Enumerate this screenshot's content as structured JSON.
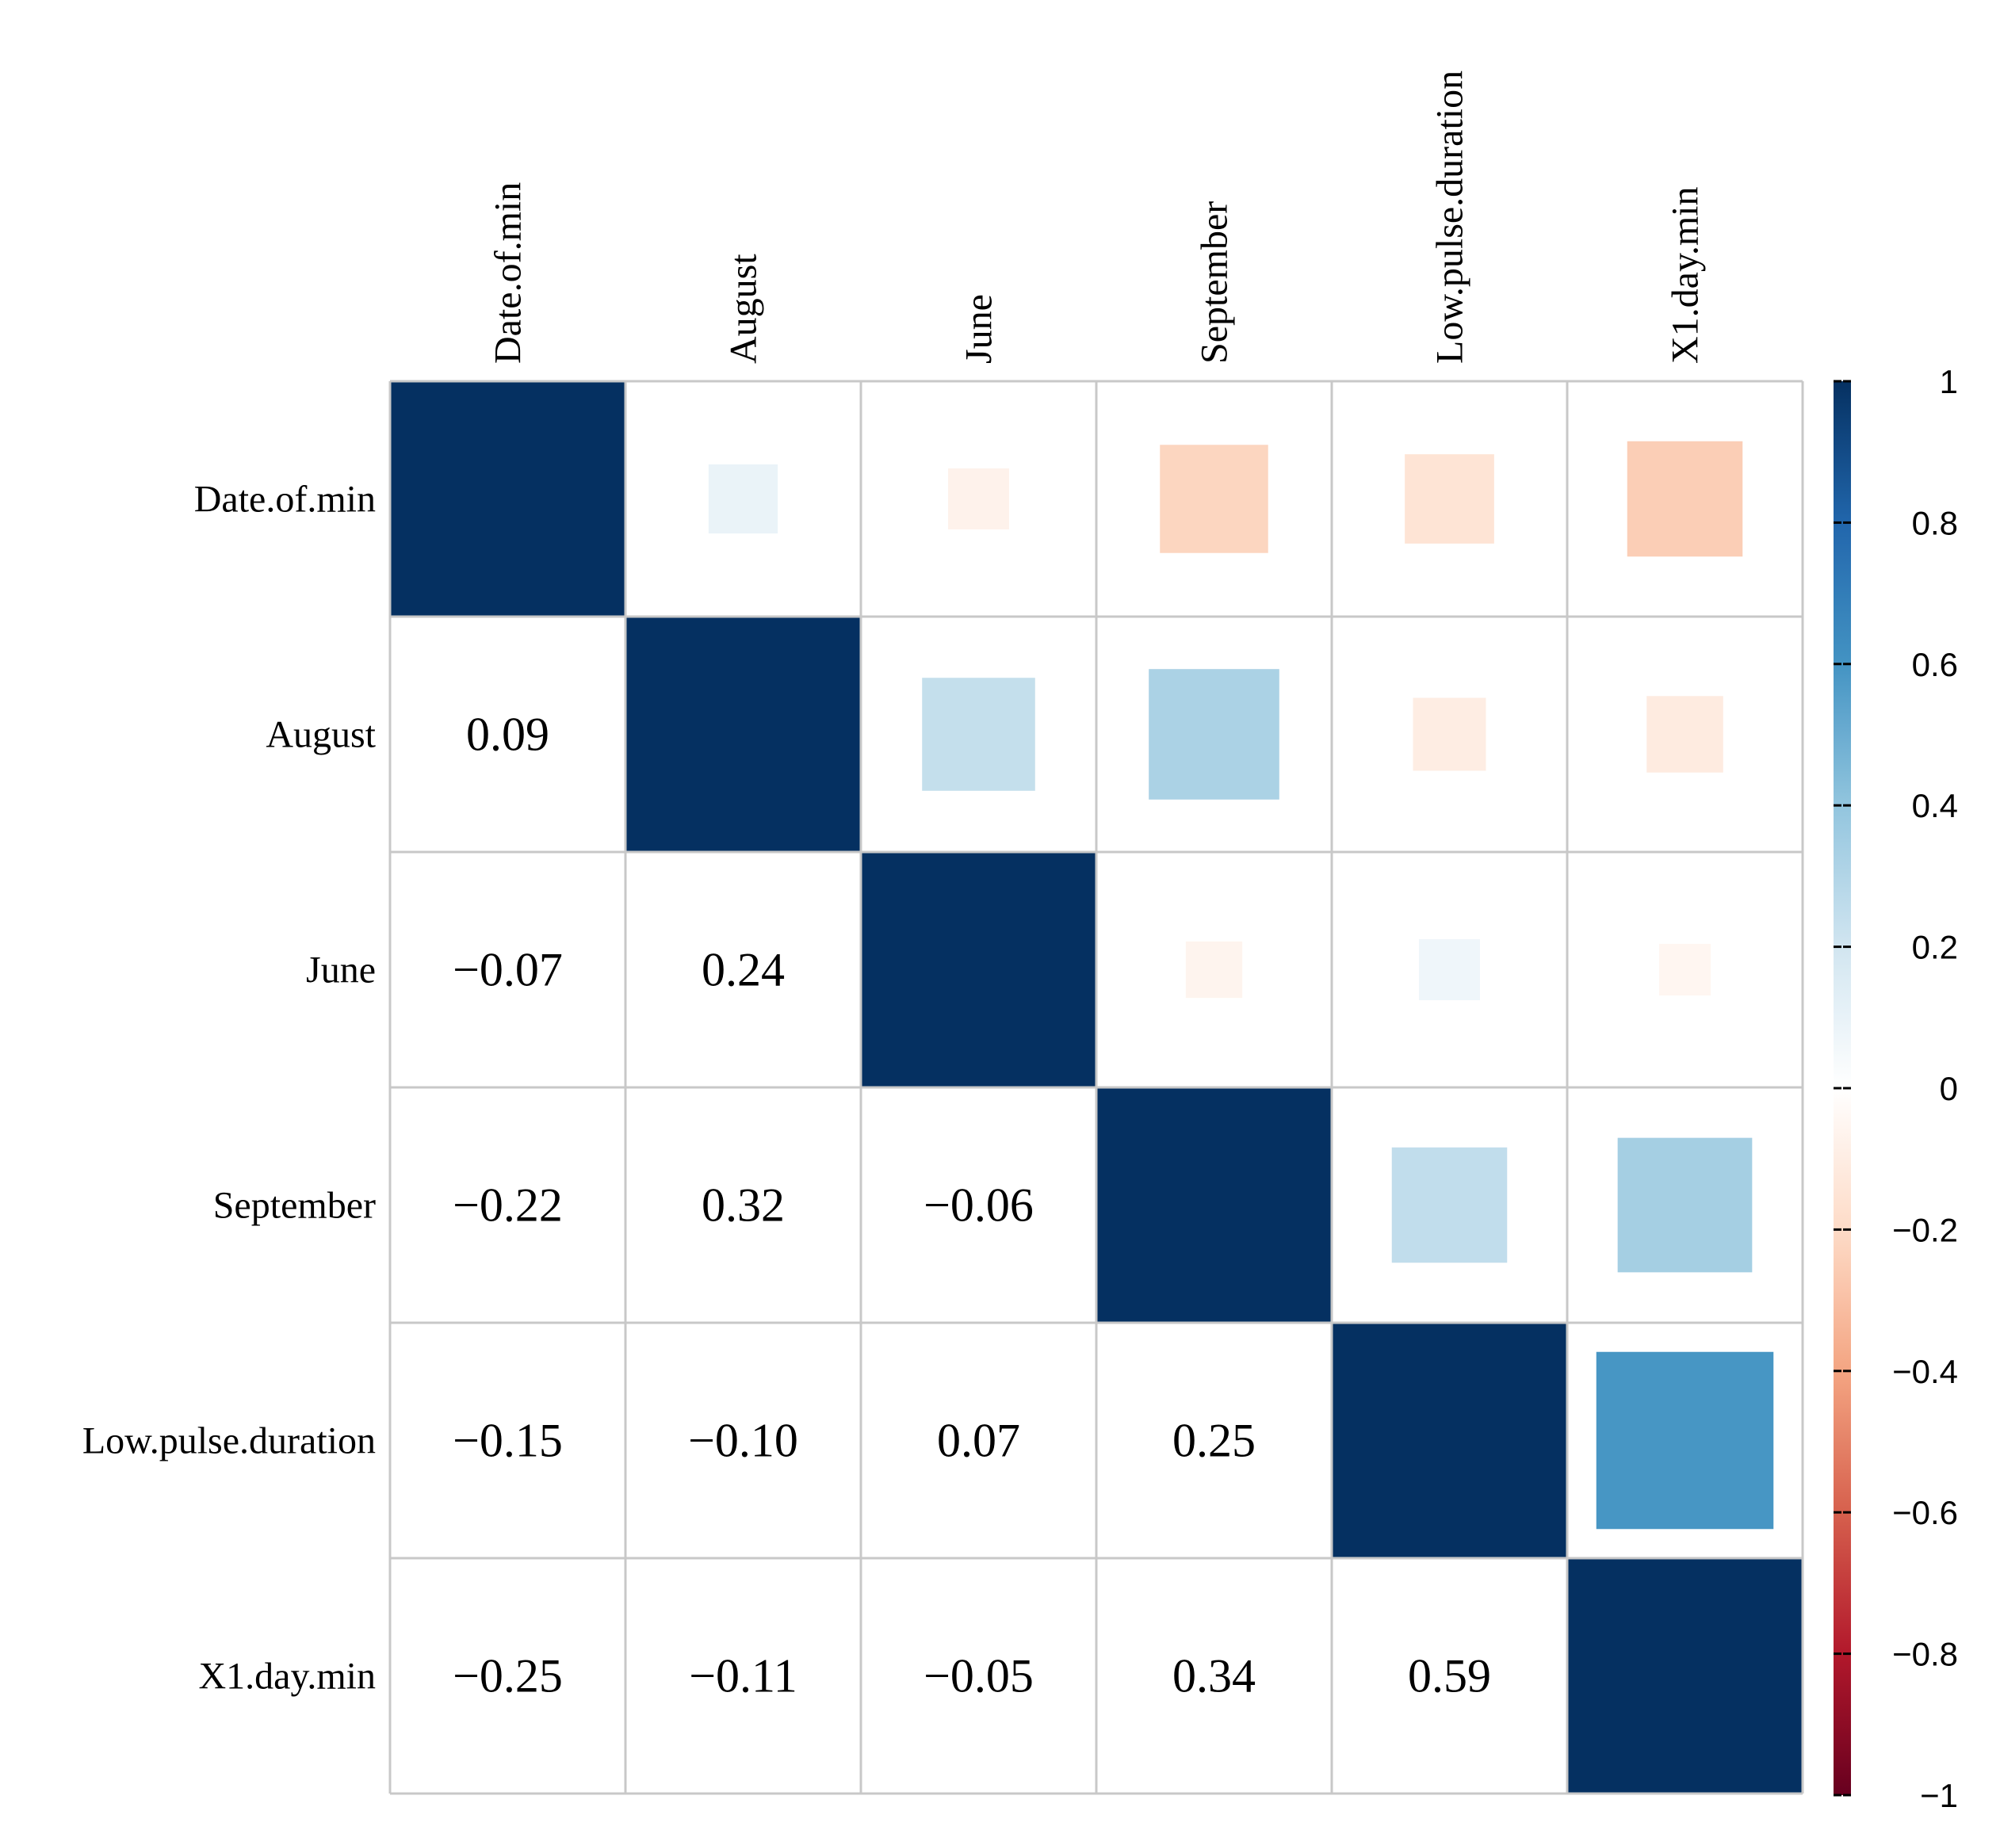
{
  "chart_data": {
    "type": "heatmap",
    "subtype": "correlation-matrix",
    "variables": [
      "Date.of.min",
      "August",
      "June",
      "September",
      "Low.pulse.duration",
      "X1.day.min"
    ],
    "matrix": [
      [
        1.0,
        0.09,
        -0.07,
        -0.22,
        -0.15,
        -0.25
      ],
      [
        0.09,
        1.0,
        0.24,
        0.32,
        -0.1,
        -0.11
      ],
      [
        -0.07,
        0.24,
        1.0,
        -0.06,
        0.07,
        -0.05
      ],
      [
        -0.22,
        0.32,
        -0.06,
        1.0,
        0.25,
        0.34
      ],
      [
        -0.15,
        -0.1,
        0.07,
        0.25,
        1.0,
        0.59
      ],
      [
        -0.25,
        -0.11,
        -0.05,
        0.34,
        0.59,
        1.0
      ]
    ],
    "value_labels": [
      [
        "",
        "",
        "",
        "",
        "",
        ""
      ],
      [
        "0.09",
        "",
        "",
        "",
        "",
        ""
      ],
      [
        "−0.07",
        "0.24",
        "",
        "",
        "",
        ""
      ],
      [
        "−0.22",
        "0.32",
        "−0.06",
        "",
        "",
        ""
      ],
      [
        "−0.15",
        "−0.10",
        "0.07",
        "0.25",
        "",
        ""
      ],
      [
        "−0.25",
        "−0.11",
        "−0.05",
        "0.34",
        "0.59",
        ""
      ]
    ],
    "upper_triangle": "squares",
    "lower_triangle": "numbers",
    "diagonal": "full",
    "colorbar": {
      "range": [
        -1,
        1
      ],
      "ticks": [
        1,
        0.8,
        0.6,
        0.4,
        0.2,
        0,
        -0.2,
        -0.4,
        -0.6,
        -0.8,
        -1
      ],
      "tick_labels": [
        "1",
        "0.8",
        "0.6",
        "0.4",
        "0.2",
        "0",
        "−0.2",
        "−0.4",
        "−0.6",
        "−0.8",
        "−1"
      ],
      "colors": [
        "#67001f",
        "#b2182b",
        "#d6604d",
        "#f4a582",
        "#fddbc7",
        "#ffffff",
        "#d1e5f0",
        "#92c5de",
        "#4393c3",
        "#2166ac",
        "#053061"
      ]
    }
  }
}
